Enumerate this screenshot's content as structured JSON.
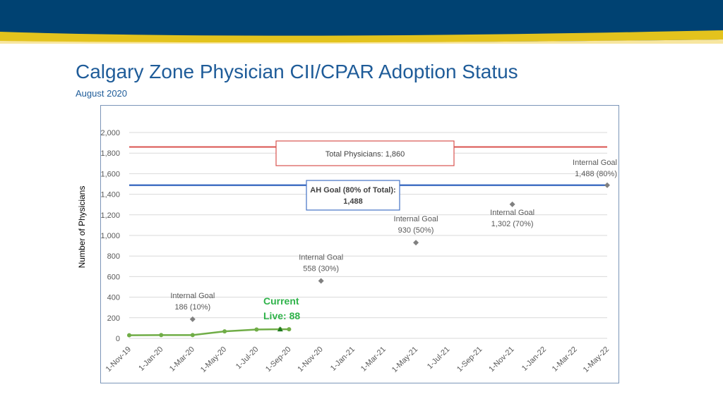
{
  "page": {
    "title": "Calgary Zone Physician CII/CPAR Adoption Status",
    "subtitle": "August 2020"
  },
  "colors": {
    "header_band": "#004272",
    "header_stripe": "#e3c31d",
    "title": "#1f5c99",
    "total_line": "#d9534f",
    "goal_line": "#4472c4",
    "live_series": "#70ad47",
    "current_text": "#2fb34a",
    "goal_markers": "#808080",
    "gridlines": "#d9d9d9"
  },
  "chart_data": {
    "type": "line",
    "xlabel": "",
    "ylabel": "Number of Physicians",
    "ylim": [
      0,
      2000
    ],
    "yticks": [
      0,
      200,
      400,
      600,
      800,
      1000,
      1200,
      1400,
      1600,
      1800,
      2000
    ],
    "ytick_labels": [
      "0",
      "200",
      "400",
      "600",
      "800",
      "1,000",
      "1,200",
      "1,400",
      "1,600",
      "1,800",
      "2,000"
    ],
    "xlim": [
      "2019-11-01",
      "2022-05-01"
    ],
    "xticks": [
      "2019-11-01",
      "2020-01-01",
      "2020-03-01",
      "2020-05-01",
      "2020-07-01",
      "2020-09-01",
      "2020-11-01",
      "2021-01-01",
      "2021-03-01",
      "2021-05-01",
      "2021-07-01",
      "2021-09-01",
      "2021-11-01",
      "2022-01-01",
      "2022-03-01",
      "2022-05-01"
    ],
    "xtick_labels": [
      "1-Nov-19",
      "1-Jan-20",
      "1-Mar-20",
      "1-May-20",
      "1-Jul-20",
      "1-Sep-20",
      "1-Nov-20",
      "1-Jan-21",
      "1-Mar-21",
      "1-May-21",
      "1-Jul-21",
      "1-Sep-21",
      "1-Nov-21",
      "1-Jan-22",
      "1-Mar-22",
      "1-May-22"
    ],
    "grid": true,
    "reference_lines": [
      {
        "key": "total",
        "value": 1860,
        "label": "Total Physicians: 1,860"
      },
      {
        "key": "ah_goal",
        "value": 1488,
        "label_line1": "AH Goal (80% of Total):",
        "label_line2": "1,488"
      }
    ],
    "series": [
      {
        "key": "live",
        "points": [
          {
            "x": "2019-11-01",
            "y": 30
          },
          {
            "x": "2020-01-01",
            "y": 32
          },
          {
            "x": "2020-03-01",
            "y": 32
          },
          {
            "x": "2020-05-01",
            "y": 68
          },
          {
            "x": "2020-07-01",
            "y": 86
          },
          {
            "x": "2020-08-15",
            "y": 88
          },
          {
            "x": "2020-09-01",
            "y": 88
          }
        ]
      }
    ],
    "current": {
      "x": "2020-08-15",
      "y": 88,
      "label_line1": "Current",
      "label_line2": "Live: 88"
    },
    "goals": [
      {
        "x": "2020-03-01",
        "y": 186,
        "label_line1": "Internal Goal",
        "label_line2": "186 (10%)"
      },
      {
        "x": "2020-11-01",
        "y": 558,
        "label_line1": "Internal Goal",
        "label_line2": "558 (30%)"
      },
      {
        "x": "2021-05-01",
        "y": 930,
        "label_line1": "Internal Goal",
        "label_line2": "930 (50%)"
      },
      {
        "x": "2021-11-01",
        "y": 1302,
        "label_line1": "Internal Goal",
        "label_line2": "1,302 (70%)"
      },
      {
        "x": "2022-05-01",
        "y": 1488,
        "label_line1": "Internal Goal",
        "label_line2": "1,488 (80%)"
      }
    ]
  }
}
